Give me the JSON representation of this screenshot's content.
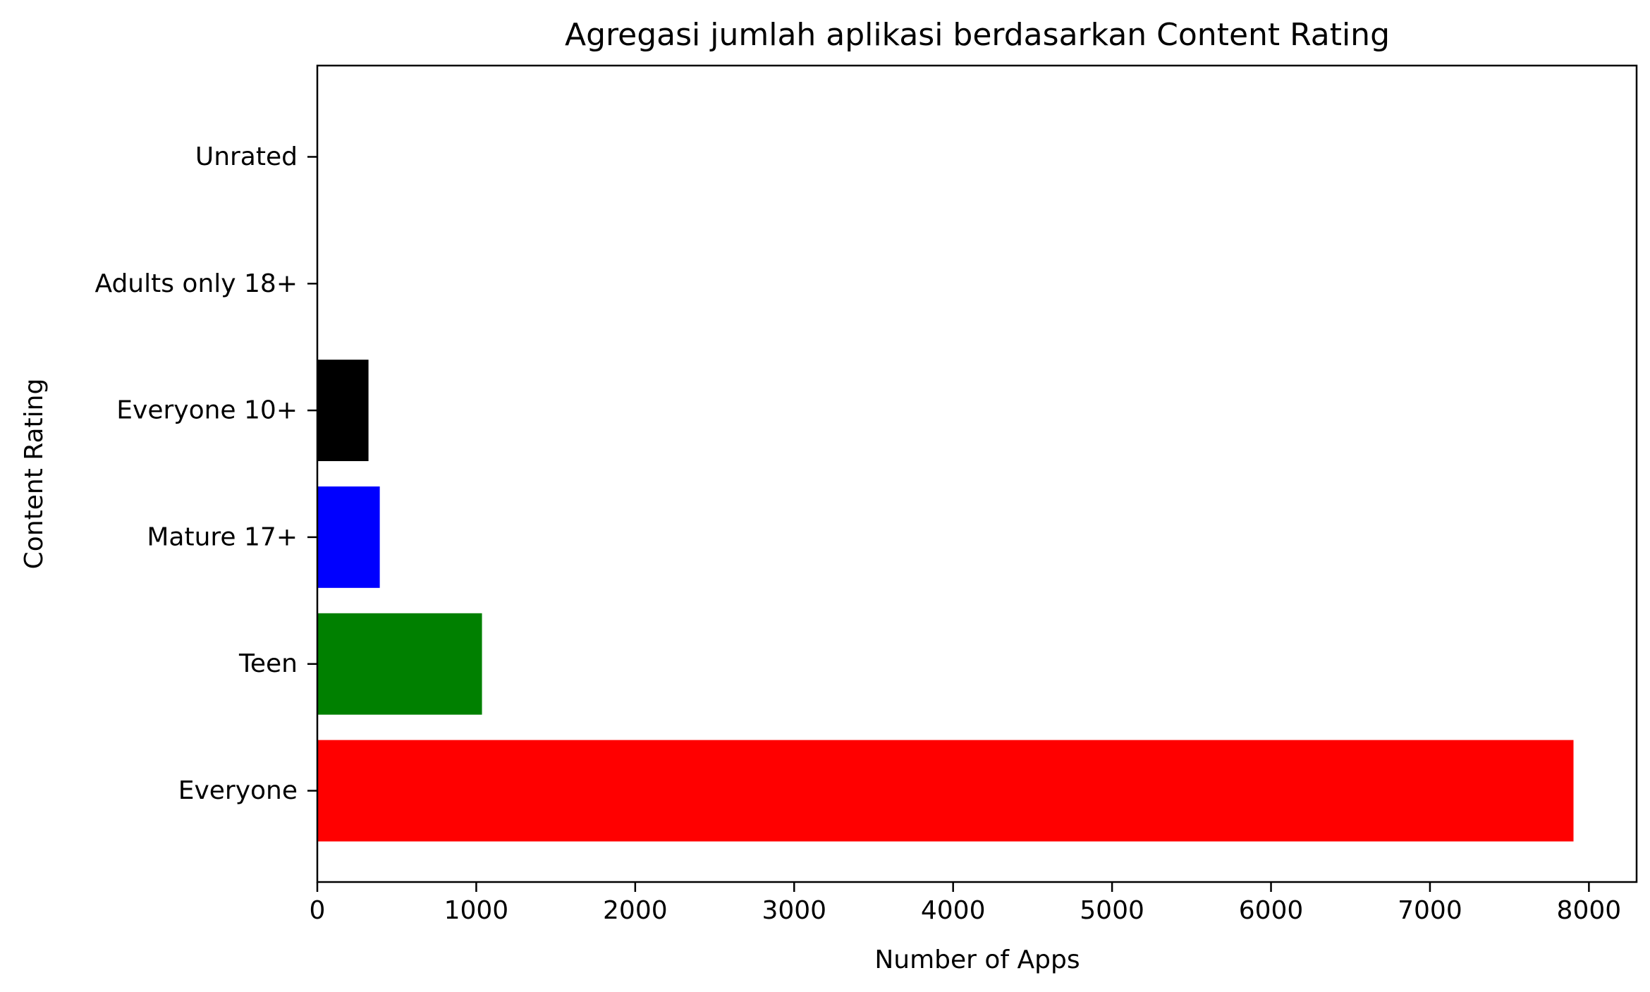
{
  "chart_data": {
    "type": "bar",
    "orientation": "horizontal",
    "title": "Agregasi jumlah aplikasi berdasarkan Content Rating",
    "xlabel": "Number of Apps",
    "ylabel": "Content Rating",
    "categories": [
      "Everyone",
      "Teen",
      "Mature 17+",
      "Everyone 10+",
      "Adults only 18+",
      "Unrated"
    ],
    "values": [
      7903,
      1036,
      393,
      322,
      3,
      1
    ],
    "colors": [
      "#ff0000",
      "#008000",
      "#0000ff",
      "#000000",
      "#ff0000",
      "#008000"
    ],
    "xlim": [
      0,
      8300
    ],
    "xticks": [
      0,
      1000,
      2000,
      3000,
      4000,
      5000,
      6000,
      7000,
      8000
    ],
    "grid": false,
    "legend": "none"
  }
}
